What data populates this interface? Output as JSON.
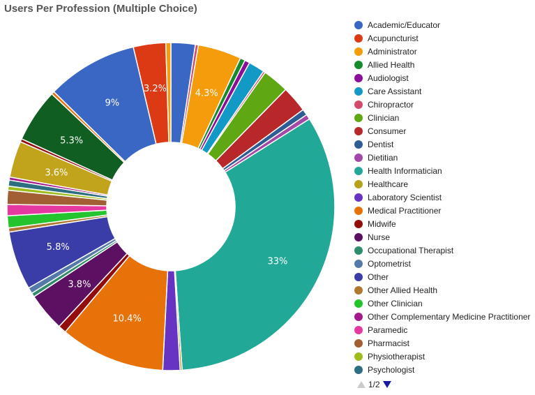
{
  "title": "Users Per Profession (Multiple Choice)",
  "pager": {
    "label": "1/2"
  },
  "chart_data": {
    "type": "pie",
    "title": "Users Per Profession (Multiple Choice)",
    "donut": true,
    "legend_position": "right",
    "legend_page": "1/2",
    "slices": [
      {
        "name": "Academic/Educator",
        "value": 2.4,
        "color": "#3a66c4"
      },
      {
        "name": "Chiropractor",
        "value": 0.3,
        "color": "#d34a6a"
      },
      {
        "name": "Administrator",
        "value": 4.3,
        "color": "#f49c0b",
        "label": "4.3%"
      },
      {
        "name": "Allied Health",
        "value": 0.5,
        "color": "#168a2c"
      },
      {
        "name": "Audiologist",
        "value": 0.5,
        "color": "#8b0e9a"
      },
      {
        "name": "Care Assistant",
        "value": 1.6,
        "color": "#1299c6"
      },
      {
        "name": "Chiropractor",
        "value": 0.2,
        "color": "#d34a6a"
      },
      {
        "name": "Clinician",
        "value": 2.6,
        "color": "#5fa814"
      },
      {
        "name": "Consumer",
        "value": 2.6,
        "color": "#b8282b"
      },
      {
        "name": "Dentist",
        "value": 0.6,
        "color": "#2e5d94"
      },
      {
        "name": "Dietitian",
        "value": 0.5,
        "color": "#a248a8"
      },
      {
        "name": "Health Informatician",
        "value": 33,
        "color": "#21a896",
        "label": "33%"
      },
      {
        "name": "Healthcare",
        "value": 0.2,
        "color": "#b5a21a"
      },
      {
        "name": "Laboratory Scientist",
        "value": 1.7,
        "color": "#6733c2"
      },
      {
        "name": "Medical Practitioner",
        "value": 10.4,
        "color": "#e8720a",
        "label": "10.4%"
      },
      {
        "name": "Midwife",
        "value": 0.8,
        "color": "#940d0d"
      },
      {
        "name": "Nurse",
        "value": 3.8,
        "color": "#5c1061",
        "label": "3.8%"
      },
      {
        "name": "Occupational Therapist",
        "value": 0.4,
        "color": "#2f8c6c"
      },
      {
        "name": "Optometrist",
        "value": 0.6,
        "color": "#5579a8"
      },
      {
        "name": "Other",
        "value": 5.8,
        "color": "#3a3da8",
        "label": "5.8%"
      },
      {
        "name": "Other Allied Health",
        "value": 0.4,
        "color": "#b0782e"
      },
      {
        "name": "Other Clinician",
        "value": 1.2,
        "color": "#23c42d"
      },
      {
        "name": "Paramedic",
        "value": 1.1,
        "color": "#e639a0"
      },
      {
        "name": "Pharmacist",
        "value": 1.4,
        "color": "#a35f34"
      },
      {
        "name": "Physiotherapist",
        "value": 0.4,
        "color": "#9ebd1c"
      },
      {
        "name": "Psychologist",
        "value": 0.6,
        "color": "#2d6e80"
      },
      {
        "name": "Other Complementary Medicine Practitioner",
        "value": 0.3,
        "color": "#a31a8a"
      },
      {
        "name": "Healthcare",
        "value": 3.6,
        "color": "#c2a41c",
        "label": "3.6%"
      },
      {
        "name": "Midwife",
        "value": 0.3,
        "color": "#940d0d"
      },
      {
        "name": "Allied Health",
        "value": 5.3,
        "color": "#105e22",
        "label": "5.3%"
      },
      {
        "name": "Medical Practitioner",
        "value": 0.3,
        "color": "#e8720a"
      },
      {
        "name": "Academic/Educator",
        "value": 9.0,
        "color": "#3a66c4",
        "label": "9%"
      },
      {
        "name": "Acupuncturist",
        "value": 3.2,
        "color": "#dc3a14",
        "label": "3.2%"
      },
      {
        "name": "Administrator",
        "value": 0.5,
        "color": "#f49c0b"
      }
    ]
  },
  "legend": [
    {
      "label": "Academic/Educator",
      "color": "#3a66c4"
    },
    {
      "label": "Acupuncturist",
      "color": "#dc3a14"
    },
    {
      "label": "Administrator",
      "color": "#f49c0b"
    },
    {
      "label": "Allied Health",
      "color": "#168a2c"
    },
    {
      "label": "Audiologist",
      "color": "#8b0e9a"
    },
    {
      "label": "Care Assistant",
      "color": "#1299c6"
    },
    {
      "label": "Chiropractor",
      "color": "#d34a6a"
    },
    {
      "label": "Clinician",
      "color": "#5fa814"
    },
    {
      "label": "Consumer",
      "color": "#b8282b"
    },
    {
      "label": "Dentist",
      "color": "#2e5d94"
    },
    {
      "label": "Dietitian",
      "color": "#a248a8"
    },
    {
      "label": "Health Informatician",
      "color": "#21a896"
    },
    {
      "label": "Healthcare",
      "color": "#b5a21a"
    },
    {
      "label": "Laboratory Scientist",
      "color": "#6733c2"
    },
    {
      "label": "Medical Practitioner",
      "color": "#e8720a"
    },
    {
      "label": "Midwife",
      "color": "#940d0d"
    },
    {
      "label": "Nurse",
      "color": "#5c1061"
    },
    {
      "label": "Occupational Therapist",
      "color": "#2f8c6c"
    },
    {
      "label": "Optometrist",
      "color": "#5579a8"
    },
    {
      "label": "Other",
      "color": "#3a3da8"
    },
    {
      "label": "Other Allied Health",
      "color": "#b0782e"
    },
    {
      "label": "Other Clinician",
      "color": "#23c42d"
    },
    {
      "label": "Other Complementary Medicine Practitioner",
      "color": "#a31a8a"
    },
    {
      "label": "Paramedic",
      "color": "#e639a0"
    },
    {
      "label": "Pharmacist",
      "color": "#a35f34"
    },
    {
      "label": "Physiotherapist",
      "color": "#9ebd1c"
    },
    {
      "label": "Psychologist",
      "color": "#2d6e80"
    }
  ]
}
